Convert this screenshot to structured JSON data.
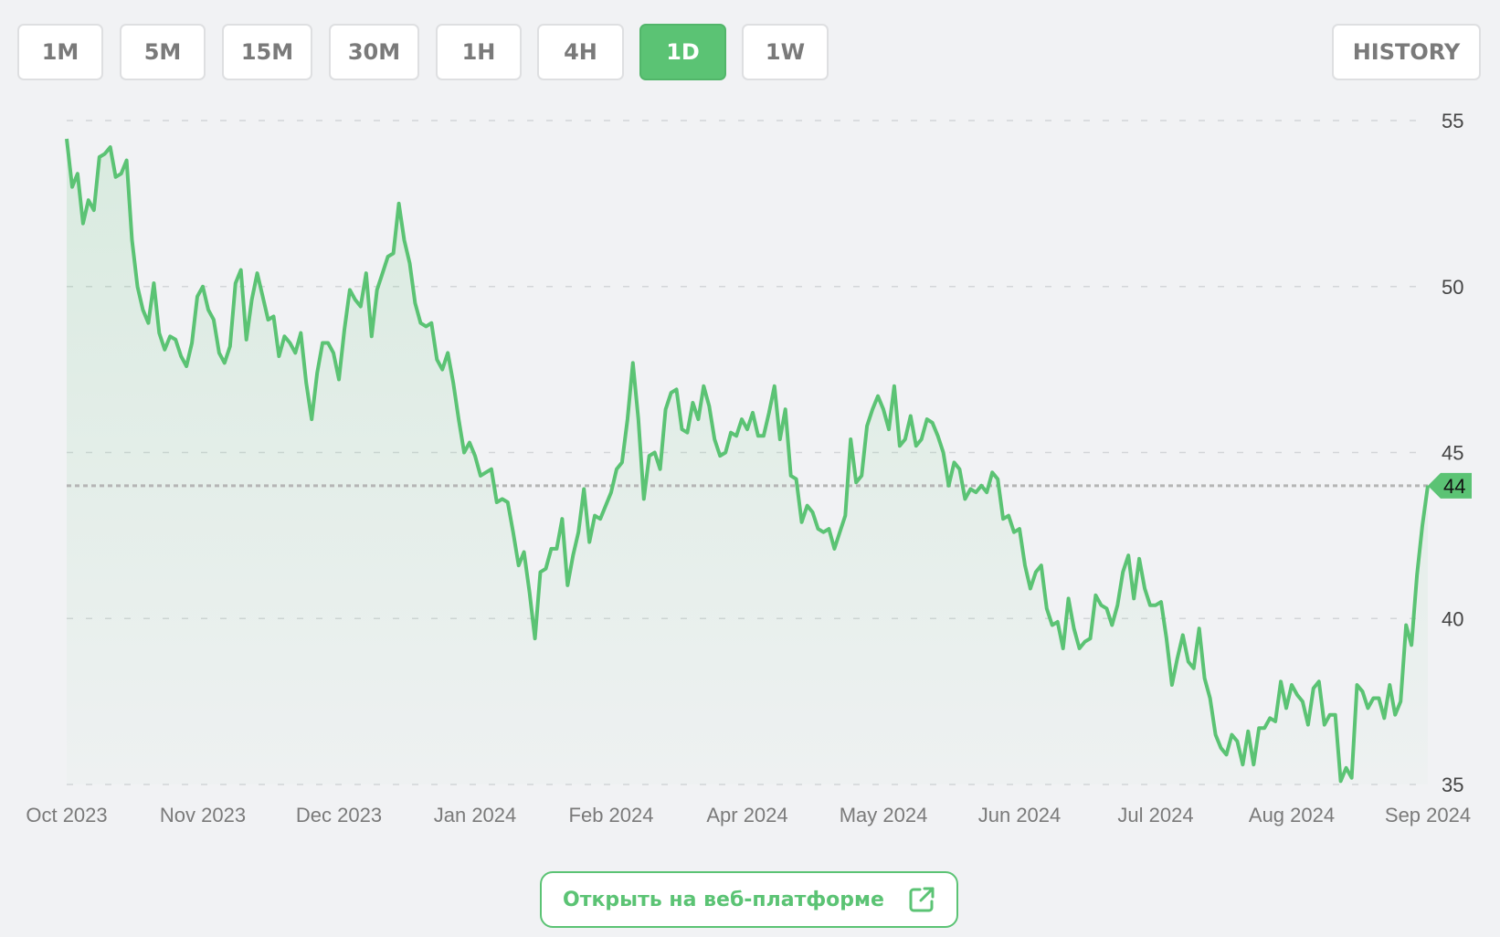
{
  "timeframes": [
    {
      "label": "1M",
      "active": false
    },
    {
      "label": "5M",
      "active": false
    },
    {
      "label": "15M",
      "active": false
    },
    {
      "label": "30M",
      "active": false
    },
    {
      "label": "1H",
      "active": false
    },
    {
      "label": "4H",
      "active": false
    },
    {
      "label": "1D",
      "active": true
    },
    {
      "label": "1W",
      "active": false
    }
  ],
  "history_label": "HISTORY",
  "web_button": {
    "label": "Открыть на веб-платформе",
    "icon": "external-link-icon"
  },
  "colors": {
    "accent": "#5bc374",
    "background": "#f1f2f4",
    "grid": "#d6d8db",
    "price_line": "#b5b5b5"
  },
  "chart_data": {
    "type": "line",
    "title": "",
    "xlabel": "",
    "ylabel": "",
    "ylim": [
      35,
      55
    ],
    "yticks": [
      55,
      50,
      45,
      40,
      35
    ],
    "x_tick_labels": [
      "Oct 2023",
      "Nov 2023",
      "Dec 2023",
      "Jan 2024",
      "Feb 2024",
      "Apr 2024",
      "May 2024",
      "Jun 2024",
      "Jul 2024",
      "Aug 2024",
      "Sep 2024"
    ],
    "grid": true,
    "current_price": 44,
    "current_price_label": "44",
    "values": [
      54.45,
      53.0,
      53.4,
      51.9,
      52.6,
      52.3,
      53.9,
      54.0,
      54.2,
      53.3,
      53.4,
      53.8,
      51.4,
      50.0,
      49.3,
      48.9,
      50.1,
      48.6,
      48.1,
      48.5,
      48.4,
      47.9,
      47.6,
      48.3,
      49.7,
      50.0,
      49.3,
      49.0,
      48.0,
      47.7,
      48.2,
      50.1,
      50.5,
      48.4,
      49.6,
      50.4,
      49.7,
      49.0,
      49.1,
      47.9,
      48.5,
      48.3,
      48.0,
      48.6,
      47.1,
      46.0,
      47.4,
      48.3,
      48.3,
      48.0,
      47.2,
      48.7,
      49.9,
      49.6,
      49.4,
      50.4,
      48.5,
      49.9,
      50.4,
      50.9,
      51.0,
      52.5,
      51.4,
      50.7,
      49.5,
      48.9,
      48.8,
      48.9,
      47.8,
      47.5,
      48.0,
      47.1,
      46.0,
      45.0,
      45.3,
      44.9,
      44.3,
      44.4,
      44.5,
      43.5,
      43.6,
      43.5,
      42.6,
      41.6,
      42.0,
      40.8,
      39.4,
      41.4,
      41.5,
      42.1,
      42.1,
      43.0,
      41.0,
      41.9,
      42.6,
      43.9,
      42.3,
      43.1,
      43.0,
      43.4,
      43.8,
      44.5,
      44.7,
      46.0,
      47.7,
      46.0,
      43.6,
      44.9,
      45.0,
      44.5,
      46.3,
      46.8,
      46.9,
      45.7,
      45.6,
      46.5,
      46.0,
      47.0,
      46.4,
      45.4,
      44.9,
      45.0,
      45.6,
      45.5,
      46.0,
      45.7,
      46.2,
      45.5,
      45.5,
      46.2,
      47.0,
      45.4,
      46.3,
      44.3,
      44.2,
      42.9,
      43.4,
      43.2,
      42.7,
      42.6,
      42.7,
      42.1,
      42.6,
      43.1,
      45.4,
      44.1,
      44.3,
      45.8,
      46.3,
      46.7,
      46.3,
      45.7,
      47.0,
      45.2,
      45.4,
      46.1,
      45.2,
      45.4,
      46.0,
      45.9,
      45.5,
      45.0,
      44.0,
      44.7,
      44.5,
      43.6,
      43.9,
      43.8,
      44.0,
      43.8,
      44.4,
      44.2,
      43.0,
      43.1,
      42.6,
      42.7,
      41.6,
      40.9,
      41.4,
      41.6,
      40.3,
      39.8,
      39.9,
      39.1,
      40.6,
      39.7,
      39.1,
      39.3,
      39.4,
      40.7,
      40.4,
      40.3,
      39.8,
      40.4,
      41.4,
      41.9,
      40.6,
      41.8,
      40.9,
      40.4,
      40.4,
      40.5,
      39.4,
      38.0,
      38.8,
      39.5,
      38.7,
      38.5,
      39.7,
      38.2,
      37.6,
      36.5,
      36.1,
      35.9,
      36.5,
      36.3,
      35.6,
      36.6,
      35.6,
      36.7,
      36.7,
      37.0,
      36.9,
      38.1,
      37.3,
      38.0,
      37.7,
      37.5,
      36.8,
      37.9,
      38.1,
      36.8,
      37.1,
      37.1,
      35.1,
      35.5,
      35.2,
      38.0,
      37.8,
      37.3,
      37.6,
      37.6,
      37.0,
      38.0,
      37.1,
      37.5,
      39.8,
      39.2,
      41.3,
      42.8,
      44.0
    ]
  }
}
